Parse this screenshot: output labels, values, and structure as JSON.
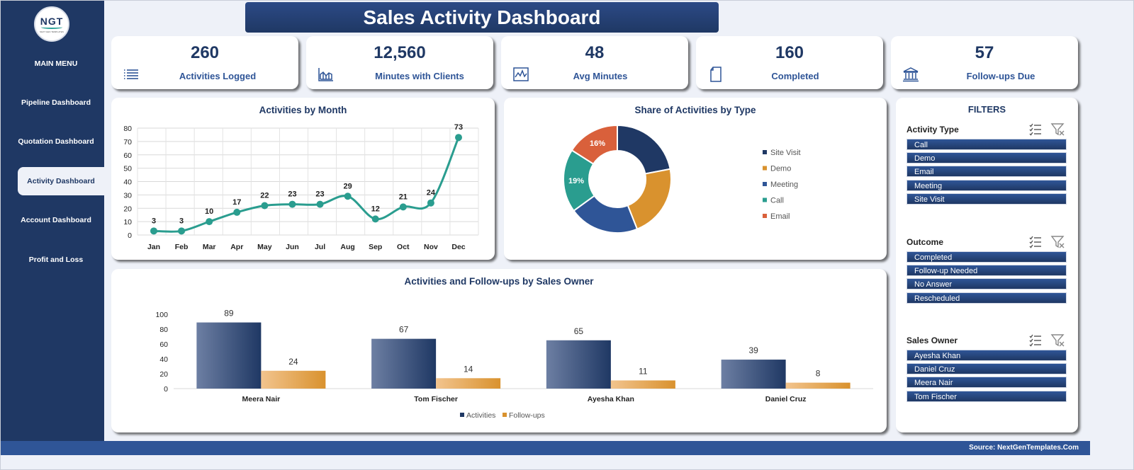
{
  "app": {
    "title": "Sales Activity Dashboard",
    "logo_text": "NGT",
    "logo_sub": "NEXT GEN TEMPLATES",
    "source": "Source: NextGenTemplates.Com"
  },
  "sidebar": {
    "menu_title": "MAIN MENU",
    "items": [
      {
        "label": "Pipeline Dashboard",
        "active": false
      },
      {
        "label": "Quotation Dashboard",
        "active": false
      },
      {
        "label": "Activity Dashboard",
        "active": true
      },
      {
        "label": "Account Dashboard",
        "active": false
      },
      {
        "label": "Profit and Loss",
        "active": false
      }
    ]
  },
  "kpis": [
    {
      "value": "260",
      "label": "Activities Logged",
      "icon": "list-icon"
    },
    {
      "value": "12,560",
      "label": "Minutes with Clients",
      "icon": "area-chart-icon"
    },
    {
      "value": "48",
      "label": "Avg Minutes",
      "icon": "line-chart-icon"
    },
    {
      "value": "160",
      "label": "Completed",
      "icon": "document-icon"
    },
    {
      "value": "57",
      "label": "Follow-ups Due",
      "icon": "bank-icon"
    }
  ],
  "filters": {
    "title": "FILTERS",
    "groups": [
      {
        "title": "Activity Type",
        "options": [
          "Call",
          "Demo",
          "Email",
          "Meeting",
          "Site Visit"
        ]
      },
      {
        "title": "Outcome",
        "options": [
          "Completed",
          "Follow-up Needed",
          "No Answer",
          "Rescheduled"
        ]
      },
      {
        "title": "Sales Owner",
        "options": [
          "Ayesha Khan",
          "Daniel Cruz",
          "Meera Nair",
          "Tom Fischer"
        ]
      }
    ]
  },
  "chart_data": [
    {
      "type": "line",
      "title": "Activities by Month",
      "categories": [
        "Jan",
        "Feb",
        "Mar",
        "Apr",
        "May",
        "Jun",
        "Jul",
        "Aug",
        "Sep",
        "Oct",
        "Nov",
        "Dec"
      ],
      "values": [
        3,
        3,
        10,
        17,
        22,
        23,
        23,
        29,
        12,
        21,
        24,
        73
      ],
      "ylim": [
        0,
        80
      ],
      "yticks": [
        0,
        10,
        20,
        30,
        40,
        50,
        60,
        70,
        80
      ],
      "grid": true,
      "color": "#2a9d8f"
    },
    {
      "type": "pie",
      "title": "Share of Activities by Type",
      "donut": true,
      "legend_position": "right",
      "slices": [
        {
          "label": "Site Visit",
          "value": 22,
          "color": "#1f3864"
        },
        {
          "label": "Demo",
          "value": 22,
          "color": "#d9922e"
        },
        {
          "label": "Meeting",
          "value": 21,
          "color": "#2f5597"
        },
        {
          "label": "Call",
          "value": 19,
          "color": "#2a9d8f",
          "data_label": "19%"
        },
        {
          "label": "Email",
          "value": 16,
          "color": "#d9603b",
          "data_label": "16%"
        }
      ]
    },
    {
      "type": "bar",
      "title": "Activities and Follow-ups by Sales Owner",
      "categories": [
        "Meera Nair",
        "Tom Fischer",
        "Ayesha Khan",
        "Daniel Cruz"
      ],
      "series": [
        {
          "name": "Activities",
          "values": [
            89,
            67,
            65,
            39
          ],
          "color": "#1f3864"
        },
        {
          "name": "Follow-ups",
          "values": [
            24,
            14,
            11,
            8
          ],
          "color": "#d9922e"
        }
      ],
      "ylim": [
        0,
        100
      ],
      "yticks": [
        0,
        20,
        40,
        60,
        80,
        100
      ],
      "legend_position": "bottom"
    }
  ]
}
